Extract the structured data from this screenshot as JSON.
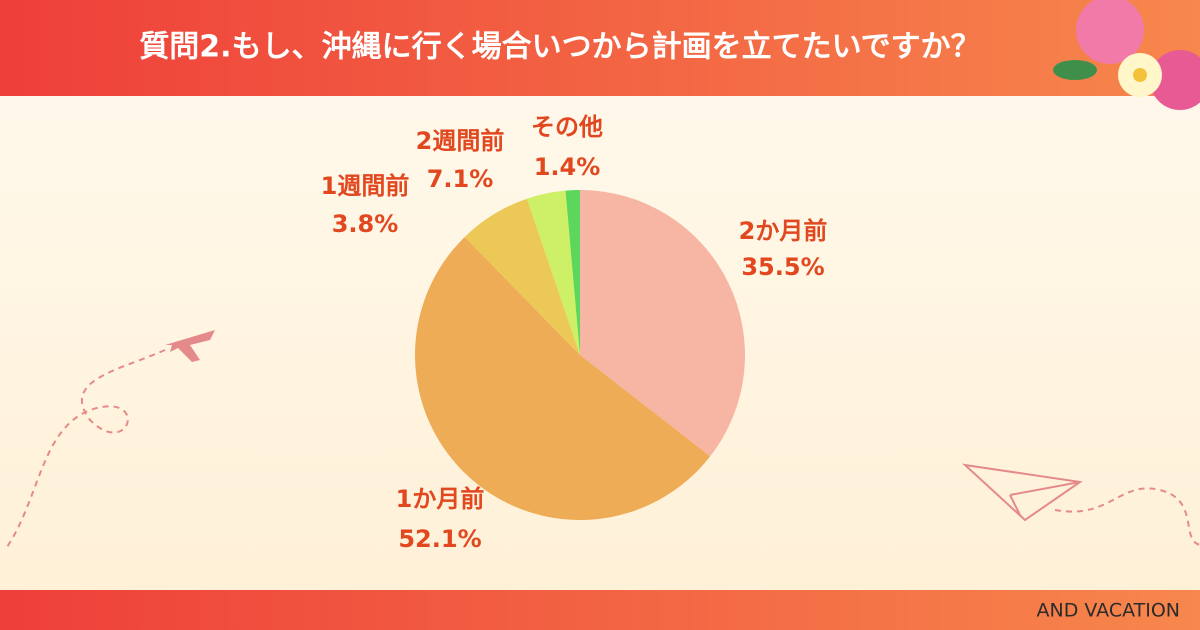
{
  "chart_data": {
    "type": "pie",
    "title": "質問2.もし、沖縄に行く場合いつから計画を立てたいですか？",
    "categories": [
      "2か月前",
      "1か月前",
      "2週間前",
      "1週間前",
      "その他"
    ],
    "values": [
      35.5,
      52.1,
      7.1,
      3.8,
      1.4
    ],
    "value_labels": [
      "35.5%",
      "52.1%",
      "7.1%",
      "3.8%",
      "1.4%"
    ],
    "colors": [
      "#f7b5a3",
      "#eeac56",
      "#ecc957",
      "#cdf066",
      "#5cd65b"
    ],
    "start_angle": 0,
    "direction": "clockwise"
  },
  "footer": {
    "text": "AND VACATION"
  }
}
